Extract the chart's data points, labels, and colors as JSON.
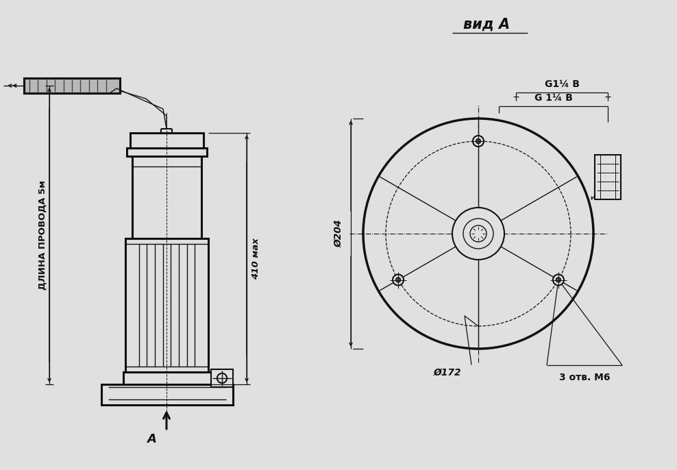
{
  "bg_color": "#e0e0e0",
  "line_color": "#111111",
  "title_right": "вид А",
  "label_length": "ДЛИНА ПРОВОДА 5м",
  "label_410": "410 мах",
  "label_204": "Ø204",
  "label_172": "Ø172",
  "label_3otv": "3 отв. М6",
  "label_G1": "G1¼ В",
  "label_G2": "G 1¼ В",
  "label_A": "А",
  "fig_w": 9.88,
  "fig_h": 6.86,
  "dpi": 100
}
